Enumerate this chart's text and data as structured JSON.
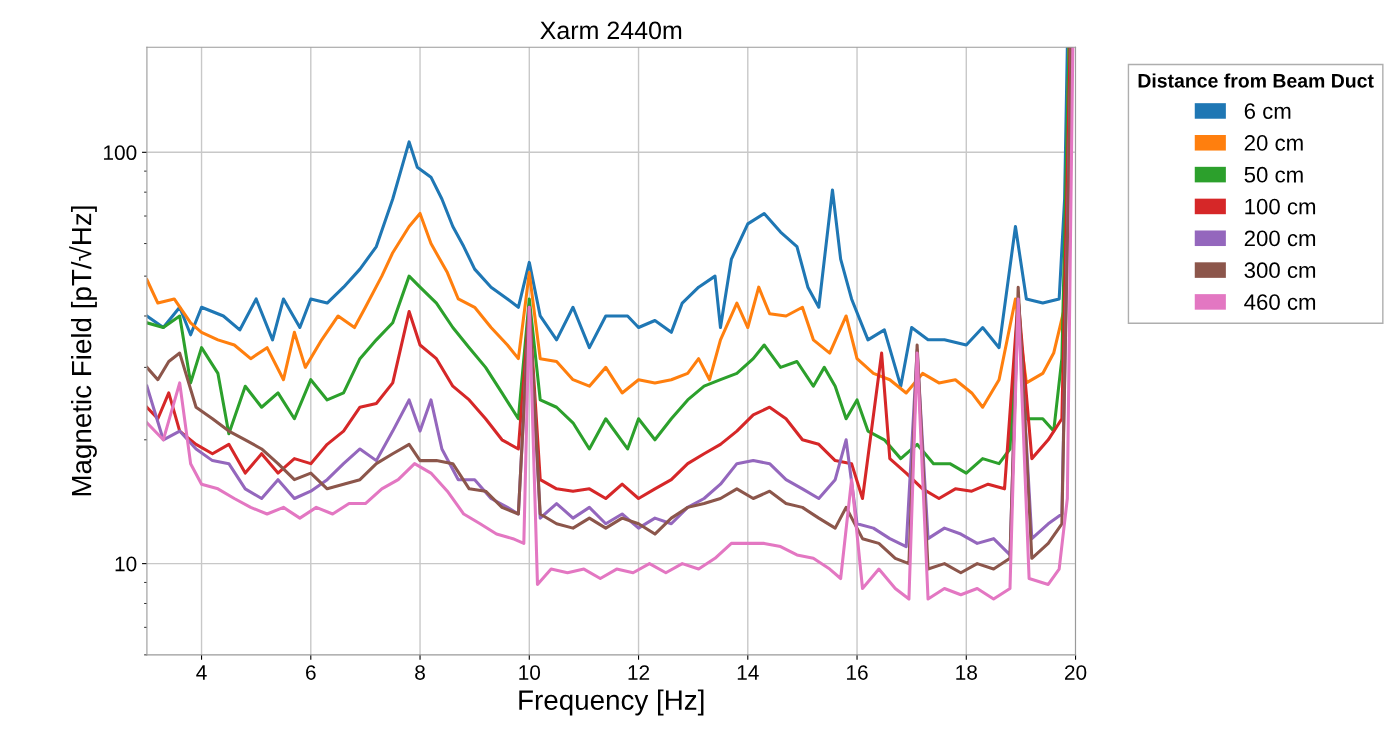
{
  "chart_data": {
    "type": "line",
    "title": "Xarm 2440m",
    "xlabel": "Frequency [Hz]",
    "ylabel": "Magnetic Field [pT/√Hz]",
    "legend_title": "Distance from Beam Duct",
    "legend": "top right",
    "grid": true,
    "log": "y",
    "line_style": "solid",
    "marker": "none",
    "xlim": [
      3,
      20
    ],
    "xticks": [
      4,
      6,
      8,
      10,
      12,
      14,
      16,
      18,
      20
    ],
    "ylim": [
      6,
      180
    ],
    "yticks": [
      10,
      100
    ],
    "series": [
      {
        "name": "6 cm",
        "color": "#1f77b4",
        "x": [
          3.0,
          3.3,
          3.6,
          3.8,
          4.0,
          4.4,
          4.7,
          5.0,
          5.3,
          5.5,
          5.8,
          6.0,
          6.3,
          6.6,
          6.9,
          7.2,
          7.5,
          7.8,
          7.95,
          8.2,
          8.4,
          8.6,
          8.8,
          9.0,
          9.3,
          9.6,
          9.8,
          10.0,
          10.2,
          10.5,
          10.8,
          11.1,
          11.4,
          11.8,
          12.0,
          12.3,
          12.6,
          12.8,
          13.1,
          13.4,
          13.5,
          13.7,
          14.0,
          14.3,
          14.6,
          14.9,
          15.1,
          15.3,
          15.55,
          15.7,
          15.9,
          16.2,
          16.5,
          16.8,
          17.0,
          17.3,
          17.6,
          18.0,
          18.3,
          18.6,
          18.9,
          19.1,
          19.4,
          19.7,
          19.8,
          19.85
        ],
        "values": [
          40,
          37.5,
          42,
          36,
          42,
          40,
          37,
          44,
          35,
          44,
          37.5,
          44,
          43,
          47,
          52,
          59,
          77,
          106,
          92,
          87,
          77,
          66,
          59,
          52,
          47,
          44,
          42,
          54,
          40,
          35,
          42,
          33.5,
          40,
          40,
          37.5,
          39,
          36.5,
          43,
          47,
          50,
          37.5,
          55,
          67,
          71,
          64,
          59,
          47,
          42,
          81,
          55,
          44,
          35,
          37,
          27,
          37.5,
          35,
          35,
          34,
          37.5,
          33.5,
          66,
          44,
          43,
          44,
          77,
          180
        ]
      },
      {
        "name": "20 cm",
        "color": "#ff7f0e",
        "x": [
          3.0,
          3.2,
          3.5,
          3.8,
          4.0,
          4.3,
          4.6,
          4.9,
          5.2,
          5.5,
          5.7,
          5.9,
          6.2,
          6.5,
          6.8,
          7.0,
          7.3,
          7.5,
          7.8,
          8.0,
          8.2,
          8.5,
          8.7,
          9.0,
          9.3,
          9.6,
          9.8,
          10.0,
          10.2,
          10.5,
          10.8,
          11.1,
          11.4,
          11.7,
          12.0,
          12.3,
          12.6,
          12.9,
          13.1,
          13.3,
          13.5,
          13.8,
          14.0,
          14.2,
          14.4,
          14.7,
          15.0,
          15.2,
          15.5,
          15.8,
          16.0,
          16.3,
          16.6,
          16.9,
          17.2,
          17.5,
          17.8,
          18.1,
          18.3,
          18.6,
          18.9,
          19.1,
          19.4,
          19.6,
          19.8,
          19.88
        ],
        "values": [
          49,
          43,
          44,
          38.5,
          36.5,
          35,
          34,
          31.5,
          33.5,
          28,
          36.5,
          30,
          35,
          40,
          37.5,
          42,
          50,
          57,
          66,
          71,
          60,
          51,
          44,
          42,
          37.5,
          34,
          31.5,
          51,
          31.5,
          31,
          28,
          27,
          30,
          26,
          28,
          27.5,
          28,
          29,
          31.5,
          28,
          35,
          43,
          37.5,
          47,
          40.5,
          40,
          42,
          35,
          32.5,
          40,
          31.5,
          29,
          28,
          26,
          29,
          27.5,
          28,
          26,
          24,
          28,
          44,
          27.5,
          29,
          32.5,
          42,
          180
        ]
      },
      {
        "name": "50 cm",
        "color": "#2ca02c",
        "x": [
          3.0,
          3.3,
          3.6,
          3.8,
          4.0,
          4.3,
          4.5,
          4.8,
          5.1,
          5.4,
          5.7,
          6.0,
          6.3,
          6.6,
          6.9,
          7.2,
          7.5,
          7.8,
          8.0,
          8.3,
          8.6,
          8.9,
          9.2,
          9.5,
          9.8,
          10.0,
          10.2,
          10.5,
          10.8,
          11.1,
          11.4,
          11.8,
          12.0,
          12.3,
          12.6,
          12.9,
          13.2,
          13.5,
          13.8,
          14.1,
          14.3,
          14.6,
          14.9,
          15.2,
          15.4,
          15.6,
          15.8,
          16.0,
          16.2,
          16.5,
          16.8,
          17.1,
          17.4,
          17.7,
          18.0,
          18.3,
          18.6,
          18.8,
          18.95,
          19.1,
          19.4,
          19.6,
          19.75,
          19.88
        ],
        "values": [
          38.5,
          37.5,
          40,
          27.5,
          33.5,
          29,
          20.7,
          27,
          24,
          26,
          22.5,
          28,
          25,
          26,
          31.5,
          35,
          38.5,
          50,
          47,
          43,
          37.5,
          33.5,
          30,
          26,
          22.5,
          44,
          25,
          24,
          22,
          19,
          22.5,
          19,
          22.5,
          20,
          22.5,
          25,
          27,
          28,
          29,
          31.5,
          34,
          30,
          31,
          27,
          30,
          27,
          22.5,
          25,
          21,
          20,
          18,
          19.5,
          17.5,
          17.5,
          16.6,
          18,
          17.5,
          19,
          44,
          22.5,
          22.5,
          21,
          31.5,
          180
        ]
      },
      {
        "name": "100 cm",
        "color": "#d62728",
        "x": [
          3.0,
          3.2,
          3.4,
          3.6,
          3.9,
          4.2,
          4.5,
          4.8,
          5.1,
          5.4,
          5.7,
          6.0,
          6.3,
          6.6,
          6.9,
          7.2,
          7.5,
          7.8,
          8.0,
          8.3,
          8.6,
          8.9,
          9.2,
          9.5,
          9.8,
          10.0,
          10.2,
          10.5,
          10.8,
          11.1,
          11.4,
          11.7,
          12.0,
          12.3,
          12.6,
          12.9,
          13.2,
          13.5,
          13.8,
          14.1,
          14.4,
          14.7,
          15.0,
          15.3,
          15.6,
          15.9,
          16.1,
          16.45,
          16.6,
          16.9,
          17.2,
          17.5,
          17.8,
          18.1,
          18.4,
          18.7,
          18.95,
          19.2,
          19.5,
          19.75,
          19.9
        ],
        "values": [
          24,
          22.5,
          26,
          21,
          19.5,
          18.5,
          19.5,
          16.6,
          18.5,
          16.6,
          18,
          17.5,
          19.5,
          21,
          24,
          24.5,
          27.5,
          41,
          34,
          31.5,
          27,
          25,
          22.5,
          20,
          19,
          42,
          16,
          15.2,
          15,
          15.2,
          14.4,
          15.6,
          14.4,
          15.2,
          16,
          17.5,
          18.5,
          19.5,
          21,
          23,
          24,
          22.5,
          20,
          19.5,
          17.8,
          17.5,
          14.4,
          32.5,
          18,
          16.6,
          15.2,
          14.4,
          15.2,
          15,
          15.6,
          15.2,
          44,
          18,
          20,
          22.5,
          180
        ]
      },
      {
        "name": "200 cm",
        "color": "#9467bd",
        "x": [
          3.0,
          3.3,
          3.6,
          3.9,
          4.2,
          4.5,
          4.8,
          5.1,
          5.4,
          5.7,
          6.0,
          6.3,
          6.6,
          6.9,
          7.2,
          7.5,
          7.8,
          8.0,
          8.2,
          8.4,
          8.7,
          9.0,
          9.3,
          9.6,
          9.8,
          10.0,
          10.2,
          10.5,
          10.8,
          11.1,
          11.4,
          11.7,
          12.0,
          12.3,
          12.6,
          12.9,
          13.2,
          13.5,
          13.8,
          14.1,
          14.4,
          14.7,
          15.0,
          15.3,
          15.6,
          15.8,
          16.0,
          16.3,
          16.6,
          16.9,
          17.1,
          17.3,
          17.6,
          17.9,
          18.2,
          18.5,
          18.8,
          18.95,
          19.2,
          19.5,
          19.75,
          19.92
        ],
        "values": [
          27,
          20,
          21,
          19,
          17.8,
          17.5,
          15.2,
          14.4,
          16,
          14.4,
          15,
          16,
          17.5,
          19,
          17.8,
          21,
          25,
          21,
          25,
          19,
          16,
          16,
          14.4,
          13.7,
          13.2,
          42,
          12.9,
          14,
          12.9,
          13.7,
          12.5,
          13.2,
          12.2,
          12.9,
          12.5,
          13.7,
          14.4,
          15.6,
          17.5,
          17.8,
          17.5,
          16,
          15.2,
          14.4,
          16,
          20,
          12.5,
          12.2,
          11.5,
          11,
          33,
          11.5,
          12.2,
          11.8,
          11.2,
          11.5,
          10.5,
          44,
          11.5,
          12.5,
          13.2,
          180
        ]
      },
      {
        "name": "300 cm",
        "color": "#8c564b",
        "x": [
          3.0,
          3.2,
          3.4,
          3.6,
          3.9,
          4.2,
          4.5,
          4.8,
          5.1,
          5.4,
          5.7,
          6.0,
          6.3,
          6.6,
          6.9,
          7.2,
          7.5,
          7.8,
          8.0,
          8.3,
          8.6,
          8.9,
          9.2,
          9.5,
          9.8,
          10.0,
          10.2,
          10.5,
          10.8,
          11.1,
          11.4,
          11.7,
          12.0,
          12.3,
          12.6,
          12.9,
          13.2,
          13.5,
          13.8,
          14.1,
          14.4,
          14.7,
          15.0,
          15.3,
          15.6,
          15.8,
          16.1,
          16.4,
          16.7,
          16.95,
          17.1,
          17.3,
          17.6,
          17.9,
          18.2,
          18.5,
          18.8,
          18.95,
          19.2,
          19.5,
          19.75,
          19.92
        ],
        "values": [
          30,
          28,
          31,
          32.5,
          24,
          22.5,
          21,
          20,
          19,
          17.5,
          16,
          16.6,
          15.2,
          15.6,
          16,
          17.5,
          18.5,
          19.5,
          17.8,
          17.8,
          17.5,
          15.2,
          15,
          13.7,
          13.2,
          42,
          13.2,
          12.5,
          12.2,
          12.9,
          12.2,
          12.9,
          12.5,
          11.8,
          12.9,
          13.7,
          14,
          14.4,
          15.2,
          14.4,
          15,
          14,
          13.7,
          12.9,
          12.2,
          13.7,
          11.5,
          11.2,
          10.3,
          10,
          34,
          9.7,
          10,
          9.5,
          10,
          9.7,
          10.3,
          47,
          10.3,
          11.2,
          12.5,
          180
        ]
      },
      {
        "name": "460 cm",
        "color": "#e377c2",
        "x": [
          3.0,
          3.3,
          3.6,
          3.8,
          4.0,
          4.3,
          4.6,
          4.9,
          5.2,
          5.5,
          5.8,
          6.1,
          6.4,
          6.7,
          7.0,
          7.3,
          7.6,
          7.9,
          8.2,
          8.5,
          8.8,
          9.1,
          9.4,
          9.7,
          9.9,
          10.0,
          10.15,
          10.4,
          10.7,
          11.0,
          11.3,
          11.6,
          11.9,
          12.2,
          12.5,
          12.8,
          13.1,
          13.4,
          13.7,
          14.0,
          14.3,
          14.6,
          14.9,
          15.2,
          15.5,
          15.7,
          15.9,
          16.1,
          16.4,
          16.7,
          16.95,
          17.1,
          17.3,
          17.6,
          17.9,
          18.2,
          18.5,
          18.8,
          18.95,
          19.15,
          19.5,
          19.7,
          19.85,
          19.95
        ],
        "values": [
          22,
          20,
          27.5,
          17.5,
          15.6,
          15.2,
          14.4,
          13.7,
          13.2,
          13.7,
          12.9,
          13.7,
          13.2,
          14,
          14,
          15.2,
          16,
          17.5,
          16.6,
          15,
          13.2,
          12.5,
          11.8,
          11.5,
          11.2,
          42,
          8.9,
          9.7,
          9.5,
          9.7,
          9.2,
          9.7,
          9.5,
          10,
          9.5,
          10,
          9.7,
          10.3,
          11.2,
          11.2,
          11.2,
          11,
          10.5,
          10.3,
          9.7,
          9.2,
          16,
          8.7,
          9.7,
          8.7,
          8.2,
          32.5,
          8.2,
          8.7,
          8.4,
          8.7,
          8.2,
          8.7,
          44,
          9.2,
          8.9,
          9.7,
          14.4,
          180
        ]
      }
    ]
  }
}
